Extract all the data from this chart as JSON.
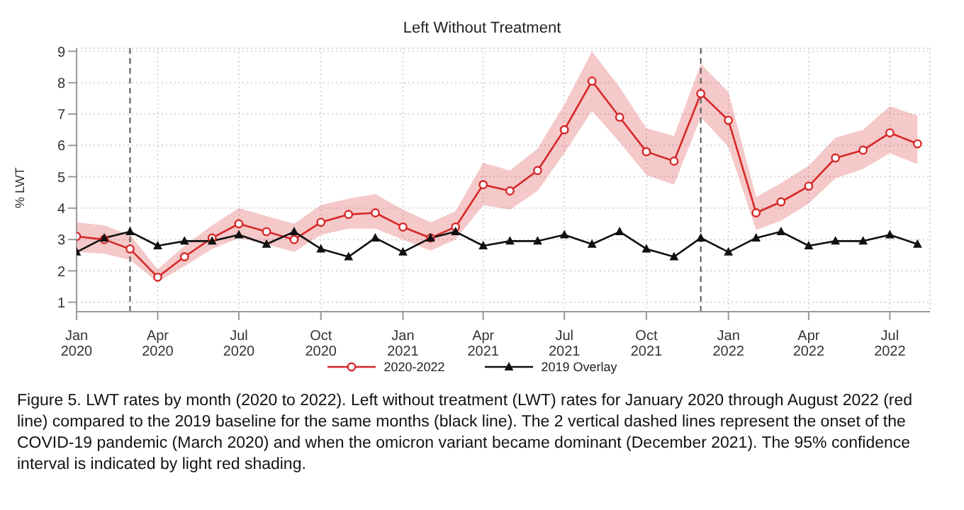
{
  "chart_data": {
    "type": "line",
    "title": "Left Without Treatment",
    "ylabel": "% LWT",
    "x": [
      "2020-01",
      "2020-02",
      "2020-03",
      "2020-04",
      "2020-05",
      "2020-06",
      "2020-07",
      "2020-08",
      "2020-09",
      "2020-10",
      "2020-11",
      "2020-12",
      "2021-01",
      "2021-02",
      "2021-03",
      "2021-04",
      "2021-05",
      "2021-06",
      "2021-07",
      "2021-08",
      "2021-09",
      "2021-10",
      "2021-11",
      "2021-12",
      "2022-01",
      "2022-02",
      "2022-03",
      "2022-04",
      "2022-05",
      "2022-06",
      "2022-07",
      "2022-08"
    ],
    "series": [
      {
        "name": "2020-2022",
        "color": "#d62728",
        "marker": "circle",
        "values": [
          3.1,
          3.0,
          2.7,
          1.8,
          2.45,
          3.05,
          3.5,
          3.25,
          3.0,
          3.55,
          3.8,
          3.85,
          3.4,
          3.05,
          3.4,
          4.75,
          4.55,
          5.2,
          6.5,
          8.05,
          6.9,
          5.8,
          5.5,
          7.65,
          6.8,
          3.85,
          4.2,
          4.7,
          5.6,
          5.85,
          6.4,
          6.05
        ],
        "lower": [
          2.6,
          2.55,
          2.35,
          1.65,
          2.15,
          2.7,
          3.05,
          2.85,
          2.6,
          3.15,
          3.35,
          3.35,
          3.0,
          2.65,
          3.0,
          4.1,
          3.95,
          4.55,
          5.75,
          7.1,
          6.1,
          5.05,
          4.75,
          6.9,
          5.95,
          3.3,
          3.6,
          4.15,
          4.95,
          5.25,
          5.75,
          5.4
        ],
        "upper": [
          3.55,
          3.45,
          3.15,
          2.05,
          2.8,
          3.45,
          4.0,
          3.75,
          3.5,
          4.1,
          4.3,
          4.45,
          3.95,
          3.55,
          3.9,
          5.45,
          5.2,
          5.9,
          7.3,
          9.0,
          7.85,
          6.55,
          6.3,
          8.6,
          7.7,
          4.35,
          4.8,
          5.35,
          6.25,
          6.5,
          7.25,
          6.95
        ]
      },
      {
        "name": "2019 Overlay",
        "color": "#111111",
        "marker": "triangle",
        "values": [
          2.6,
          3.05,
          3.25,
          2.8,
          2.95,
          2.95,
          3.15,
          2.85,
          3.25,
          2.7,
          2.45,
          3.05,
          2.6,
          3.05,
          3.25,
          2.8,
          2.95,
          2.95,
          3.15,
          2.85,
          3.25,
          2.7,
          2.45,
          3.05,
          2.6,
          3.05,
          3.25,
          2.8,
          2.95,
          2.95,
          3.15,
          2.85
        ]
      }
    ],
    "xlim": [
      "2020-01",
      "2022-08-15"
    ],
    "xticks": [
      {
        "value": "2020-01",
        "label": "Jan 2020"
      },
      {
        "value": "2020-04",
        "label": "Apr 2020"
      },
      {
        "value": "2020-07",
        "label": "Jul 2020"
      },
      {
        "value": "2020-10",
        "label": "Oct 2020"
      },
      {
        "value": "2021-01",
        "label": "Jan 2021"
      },
      {
        "value": "2021-04",
        "label": "Apr 2021"
      },
      {
        "value": "2021-07",
        "label": "Jul 2021"
      },
      {
        "value": "2021-10",
        "label": "Oct 2021"
      },
      {
        "value": "2022-01",
        "label": "Jan 2022"
      },
      {
        "value": "2022-04",
        "label": "Apr 2022"
      },
      {
        "value": "2022-07",
        "label": "Jul 2022"
      }
    ],
    "ylim": [
      0.7,
      9.1
    ],
    "yticks": [
      1,
      2,
      3,
      4,
      5,
      6,
      7,
      8,
      9
    ],
    "ref_lines": [
      {
        "axis": "x",
        "value": "2020-03",
        "color": "#555555",
        "line_style": "dashed"
      },
      {
        "axis": "x",
        "value": "2021-12",
        "color": "#555555",
        "line_style": "dashed"
      }
    ],
    "grid": true,
    "legend": "bottom",
    "line_style": "solid",
    "annotations": [
      "Figure 5. LWT rates by month (2020 to 2022). Left without treatment (LWT) rates for January 2020 through August 2022 (red line) compared to the 2019 baseline for the same months (black line). The 2 vertical dashed lines represent the onset of the COVID-19 pandemic (March 2020) and when the omicron variant became dominant (December 2021). The 95% confidence interval is indicated by light red shading."
    ]
  }
}
